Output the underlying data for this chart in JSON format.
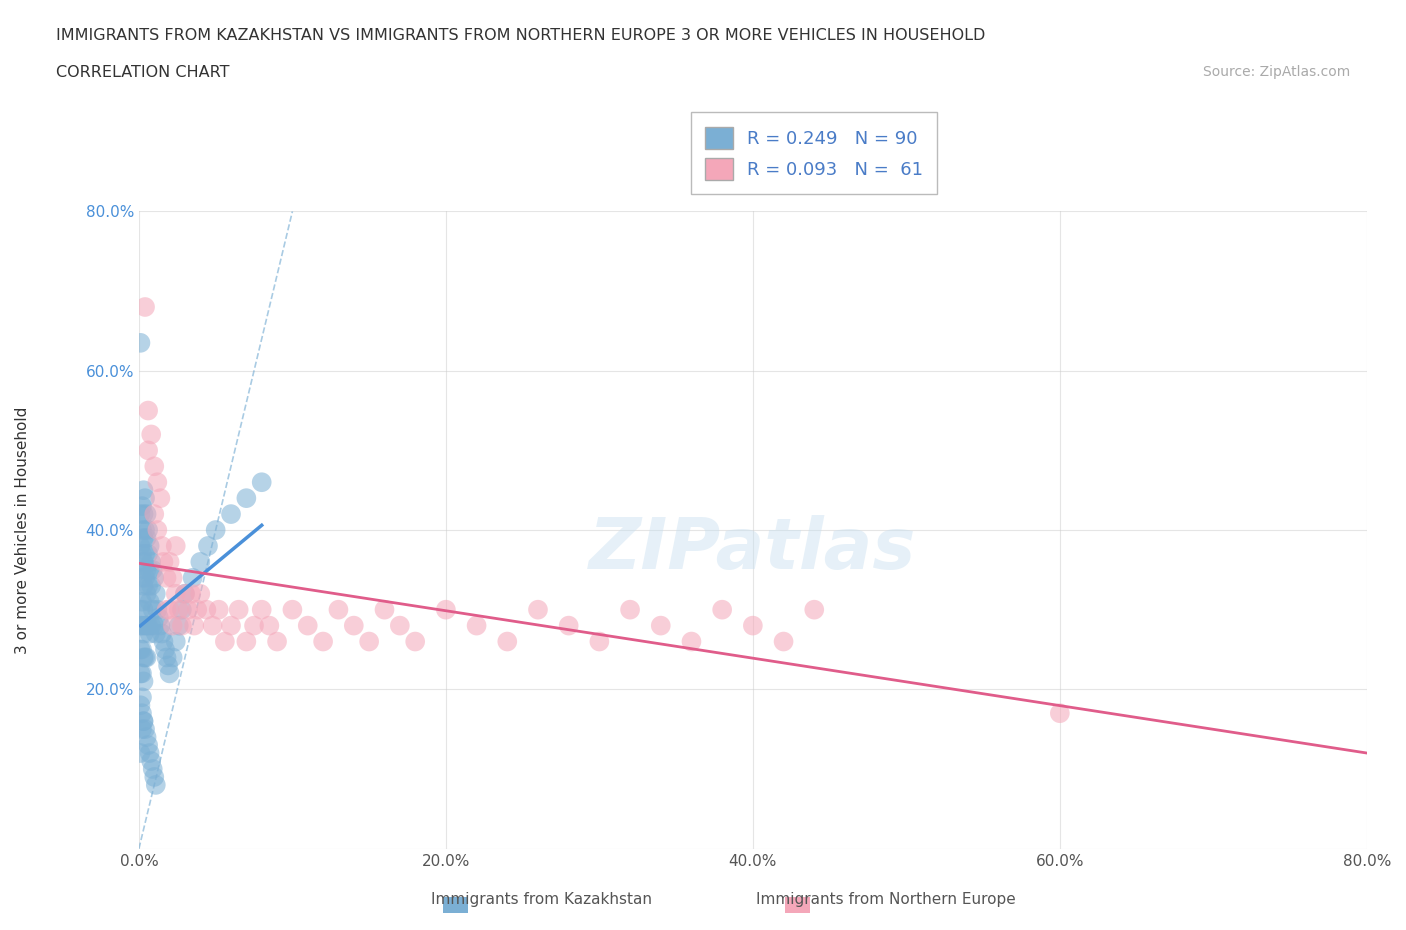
{
  "title_line1": "IMMIGRANTS FROM KAZAKHSTAN VS IMMIGRANTS FROM NORTHERN EUROPE 3 OR MORE VEHICLES IN HOUSEHOLD",
  "title_line2": "CORRELATION CHART",
  "source_text": "Source: ZipAtlas.com",
  "ylabel": "3 or more Vehicles in Household",
  "legend_bottom": [
    "Immigrants from Kazakhstan",
    "Immigrants from Northern Europe"
  ],
  "xlim": [
    0.0,
    0.8
  ],
  "ylim": [
    0.0,
    0.8
  ],
  "xtick_vals": [
    0.0,
    0.2,
    0.4,
    0.6,
    0.8
  ],
  "ytick_vals": [
    0.0,
    0.2,
    0.4,
    0.6,
    0.8
  ],
  "color_kaz": "#7bafd4",
  "color_nor": "#f4a7b9",
  "trendline_kaz_color": "#4a90d9",
  "trendline_nor_color": "#e05c8a",
  "diagonal_color": "#7bafd4",
  "R_kaz": 0.249,
  "N_kaz": 90,
  "R_nor": 0.093,
  "N_nor": 61,
  "legend_text_color": "#4a7cc7",
  "watermark": "ZIPatlas",
  "kaz_x": [
    0.001,
    0.001,
    0.001,
    0.001,
    0.001,
    0.001,
    0.001,
    0.001,
    0.001,
    0.001,
    0.002,
    0.002,
    0.002,
    0.002,
    0.002,
    0.002,
    0.002,
    0.002,
    0.002,
    0.002,
    0.003,
    0.003,
    0.003,
    0.003,
    0.003,
    0.003,
    0.003,
    0.003,
    0.003,
    0.003,
    0.004,
    0.004,
    0.004,
    0.004,
    0.004,
    0.004,
    0.005,
    0.005,
    0.005,
    0.005,
    0.005,
    0.005,
    0.006,
    0.006,
    0.006,
    0.006,
    0.007,
    0.007,
    0.007,
    0.007,
    0.008,
    0.008,
    0.008,
    0.009,
    0.009,
    0.01,
    0.01,
    0.011,
    0.011,
    0.012,
    0.013,
    0.014,
    0.015,
    0.016,
    0.017,
    0.018,
    0.019,
    0.02,
    0.022,
    0.024,
    0.026,
    0.028,
    0.03,
    0.035,
    0.04,
    0.045,
    0.05,
    0.06,
    0.07,
    0.08,
    0.002,
    0.003,
    0.004,
    0.005,
    0.006,
    0.007,
    0.008,
    0.009,
    0.01,
    0.011
  ],
  "kaz_y": [
    0.635,
    0.42,
    0.38,
    0.35,
    0.3,
    0.28,
    0.25,
    0.22,
    0.18,
    0.12,
    0.43,
    0.4,
    0.37,
    0.34,
    0.31,
    0.28,
    0.25,
    0.22,
    0.19,
    0.15,
    0.45,
    0.42,
    0.39,
    0.36,
    0.33,
    0.3,
    0.27,
    0.24,
    0.21,
    0.16,
    0.44,
    0.4,
    0.37,
    0.34,
    0.28,
    0.24,
    0.42,
    0.39,
    0.35,
    0.32,
    0.28,
    0.24,
    0.4,
    0.37,
    0.33,
    0.28,
    0.38,
    0.35,
    0.31,
    0.27,
    0.36,
    0.33,
    0.28,
    0.35,
    0.3,
    0.34,
    0.28,
    0.32,
    0.27,
    0.3,
    0.29,
    0.28,
    0.27,
    0.26,
    0.25,
    0.24,
    0.23,
    0.22,
    0.24,
    0.26,
    0.28,
    0.3,
    0.32,
    0.34,
    0.36,
    0.38,
    0.4,
    0.42,
    0.44,
    0.46,
    0.17,
    0.16,
    0.15,
    0.14,
    0.13,
    0.12,
    0.11,
    0.1,
    0.09,
    0.08
  ],
  "nor_x": [
    0.004,
    0.006,
    0.006,
    0.008,
    0.01,
    0.01,
    0.012,
    0.012,
    0.014,
    0.015,
    0.016,
    0.018,
    0.018,
    0.02,
    0.02,
    0.022,
    0.022,
    0.024,
    0.024,
    0.026,
    0.028,
    0.03,
    0.032,
    0.034,
    0.036,
    0.038,
    0.04,
    0.044,
    0.048,
    0.052,
    0.056,
    0.06,
    0.065,
    0.07,
    0.075,
    0.08,
    0.085,
    0.09,
    0.1,
    0.11,
    0.12,
    0.13,
    0.14,
    0.15,
    0.16,
    0.17,
    0.18,
    0.2,
    0.22,
    0.24,
    0.26,
    0.28,
    0.3,
    0.32,
    0.34,
    0.36,
    0.38,
    0.4,
    0.42,
    0.44,
    0.6
  ],
  "nor_y": [
    0.68,
    0.55,
    0.5,
    0.52,
    0.48,
    0.42,
    0.46,
    0.4,
    0.44,
    0.38,
    0.36,
    0.34,
    0.3,
    0.36,
    0.3,
    0.34,
    0.28,
    0.32,
    0.38,
    0.3,
    0.28,
    0.32,
    0.3,
    0.32,
    0.28,
    0.3,
    0.32,
    0.3,
    0.28,
    0.3,
    0.26,
    0.28,
    0.3,
    0.26,
    0.28,
    0.3,
    0.28,
    0.26,
    0.3,
    0.28,
    0.26,
    0.3,
    0.28,
    0.26,
    0.3,
    0.28,
    0.26,
    0.3,
    0.28,
    0.26,
    0.3,
    0.28,
    0.26,
    0.3,
    0.28,
    0.26,
    0.3,
    0.28,
    0.26,
    0.3,
    0.17
  ]
}
